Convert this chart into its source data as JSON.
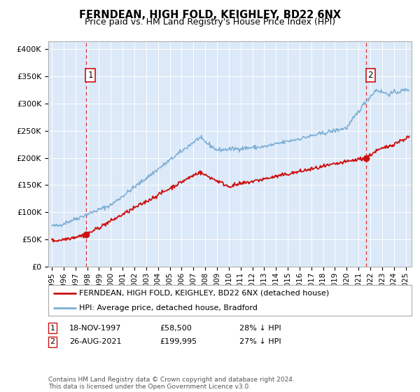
{
  "title": "FERNDEAN, HIGH FOLD, KEIGHLEY, BD22 6NX",
  "subtitle": "Price paid vs. HM Land Registry's House Price Index (HPI)",
  "ylabel_ticks": [
    "£0",
    "£50K",
    "£100K",
    "£150K",
    "£200K",
    "£250K",
    "£300K",
    "£350K",
    "£400K"
  ],
  "ytick_values": [
    0,
    50000,
    100000,
    150000,
    200000,
    250000,
    300000,
    350000,
    400000
  ],
  "ylim": [
    0,
    415000
  ],
  "xlim_start": 1994.7,
  "xlim_end": 2025.5,
  "background_color": "#dce9f8",
  "hpi_line_color": "#7aadd4",
  "price_line_color": "#cc1111",
  "marker_color": "#cc1111",
  "dashed_line_color": "#dd3333",
  "annotation_box_color": "#ffffff",
  "annotation_box_edge": "#cc1111",
  "legend_label_red": "FERNDEAN, HIGH FOLD, KEIGHLEY, BD22 6NX (detached house)",
  "legend_label_blue": "HPI: Average price, detached house, Bradford",
  "footnote": "Contains HM Land Registry data © Crown copyright and database right 2024.\nThis data is licensed under the Open Government Licence v3.0.",
  "sale1_date": 1997.89,
  "sale1_price": 58500,
  "sale1_label": "1",
  "sale2_date": 2021.64,
  "sale2_price": 199995,
  "sale2_label": "2",
  "sale1_row": "18-NOV-1997",
  "sale1_price_str": "£58,500",
  "sale1_pct": "28% ↓ HPI",
  "sale2_row": "26-AUG-2021",
  "sale2_price_str": "£199,995",
  "sale2_pct": "27% ↓ HPI",
  "xtick_years": [
    1995,
    1996,
    1997,
    1998,
    1999,
    2000,
    2001,
    2002,
    2003,
    2004,
    2005,
    2006,
    2007,
    2008,
    2009,
    2010,
    2011,
    2012,
    2013,
    2014,
    2015,
    2016,
    2017,
    2018,
    2019,
    2020,
    2021,
    2022,
    2023,
    2024,
    2025
  ]
}
